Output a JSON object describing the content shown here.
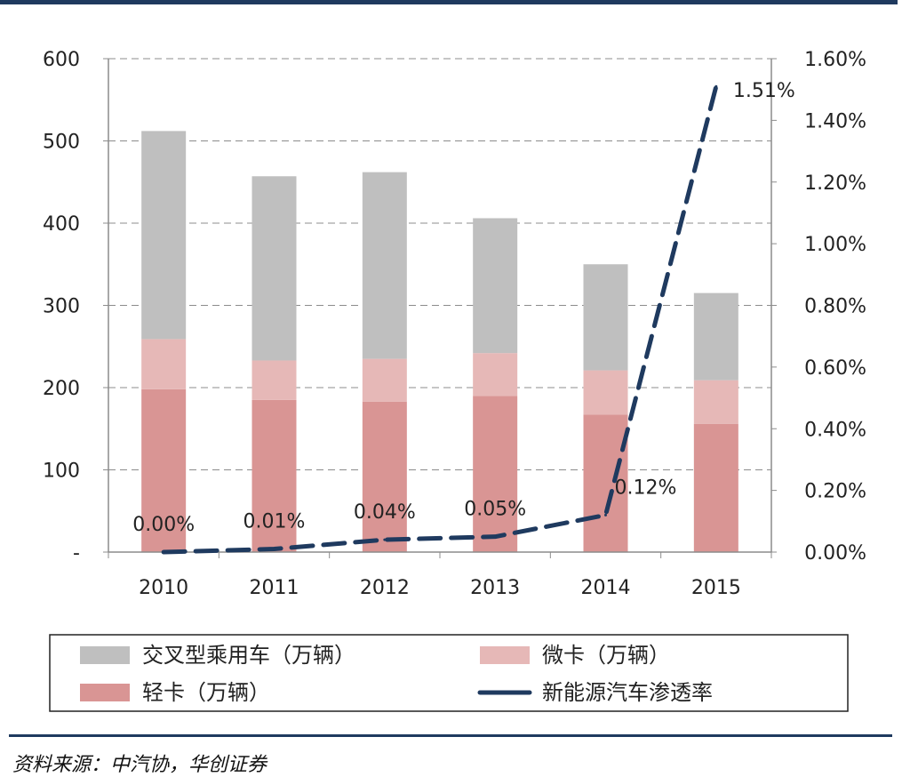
{
  "chart_data": {
    "type": "bar",
    "stacked": true,
    "categories": [
      "2010",
      "2011",
      "2012",
      "2013",
      "2014",
      "2015"
    ],
    "series": [
      {
        "name": "轻卡（万辆）",
        "type": "bar",
        "axis": "left",
        "color": "#d99594",
        "values": [
          198,
          185,
          183,
          190,
          167,
          156
        ]
      },
      {
        "name": "微卡（万辆）",
        "type": "bar",
        "axis": "left",
        "color": "#e6b8b7",
        "values": [
          61,
          48,
          52,
          52,
          54,
          53
        ]
      },
      {
        "name": "交叉型乘用车（万辆）",
        "type": "bar",
        "axis": "left",
        "color": "#bfbfbf",
        "values": [
          253,
          224,
          227,
          164,
          129,
          106
        ]
      },
      {
        "name": "新能源汽车渗透率",
        "type": "line",
        "style": "dashed",
        "axis": "right",
        "color": "#1f3a5f",
        "values": [
          0.0,
          0.0001,
          0.0004,
          0.0005,
          0.0012,
          0.0151
        ]
      }
    ],
    "data_labels": [
      "0.00%",
      "0.01%",
      "0.04%",
      "0.05%",
      "0.12%",
      "1.51%"
    ],
    "y_left": {
      "ylim": [
        0,
        600
      ],
      "ticks": [
        "-",
        "100",
        "200",
        "300",
        "400",
        "500",
        "600"
      ]
    },
    "y_right": {
      "ylim": [
        0,
        0.016
      ],
      "ticks": [
        "0.00%",
        "0.20%",
        "0.40%",
        "0.60%",
        "0.80%",
        "1.00%",
        "1.20%",
        "1.40%",
        "1.60%"
      ]
    },
    "grid": "dashed horizontal",
    "legend": {
      "position": "bottom",
      "items": [
        "交叉型乘用车（万辆）",
        "微卡（万辆）",
        "轻卡（万辆）",
        "新能源汽车渗透率"
      ]
    },
    "title": "",
    "xlabel": "",
    "ylabel": ""
  },
  "source": "资料来源：中汽协，华创证券"
}
